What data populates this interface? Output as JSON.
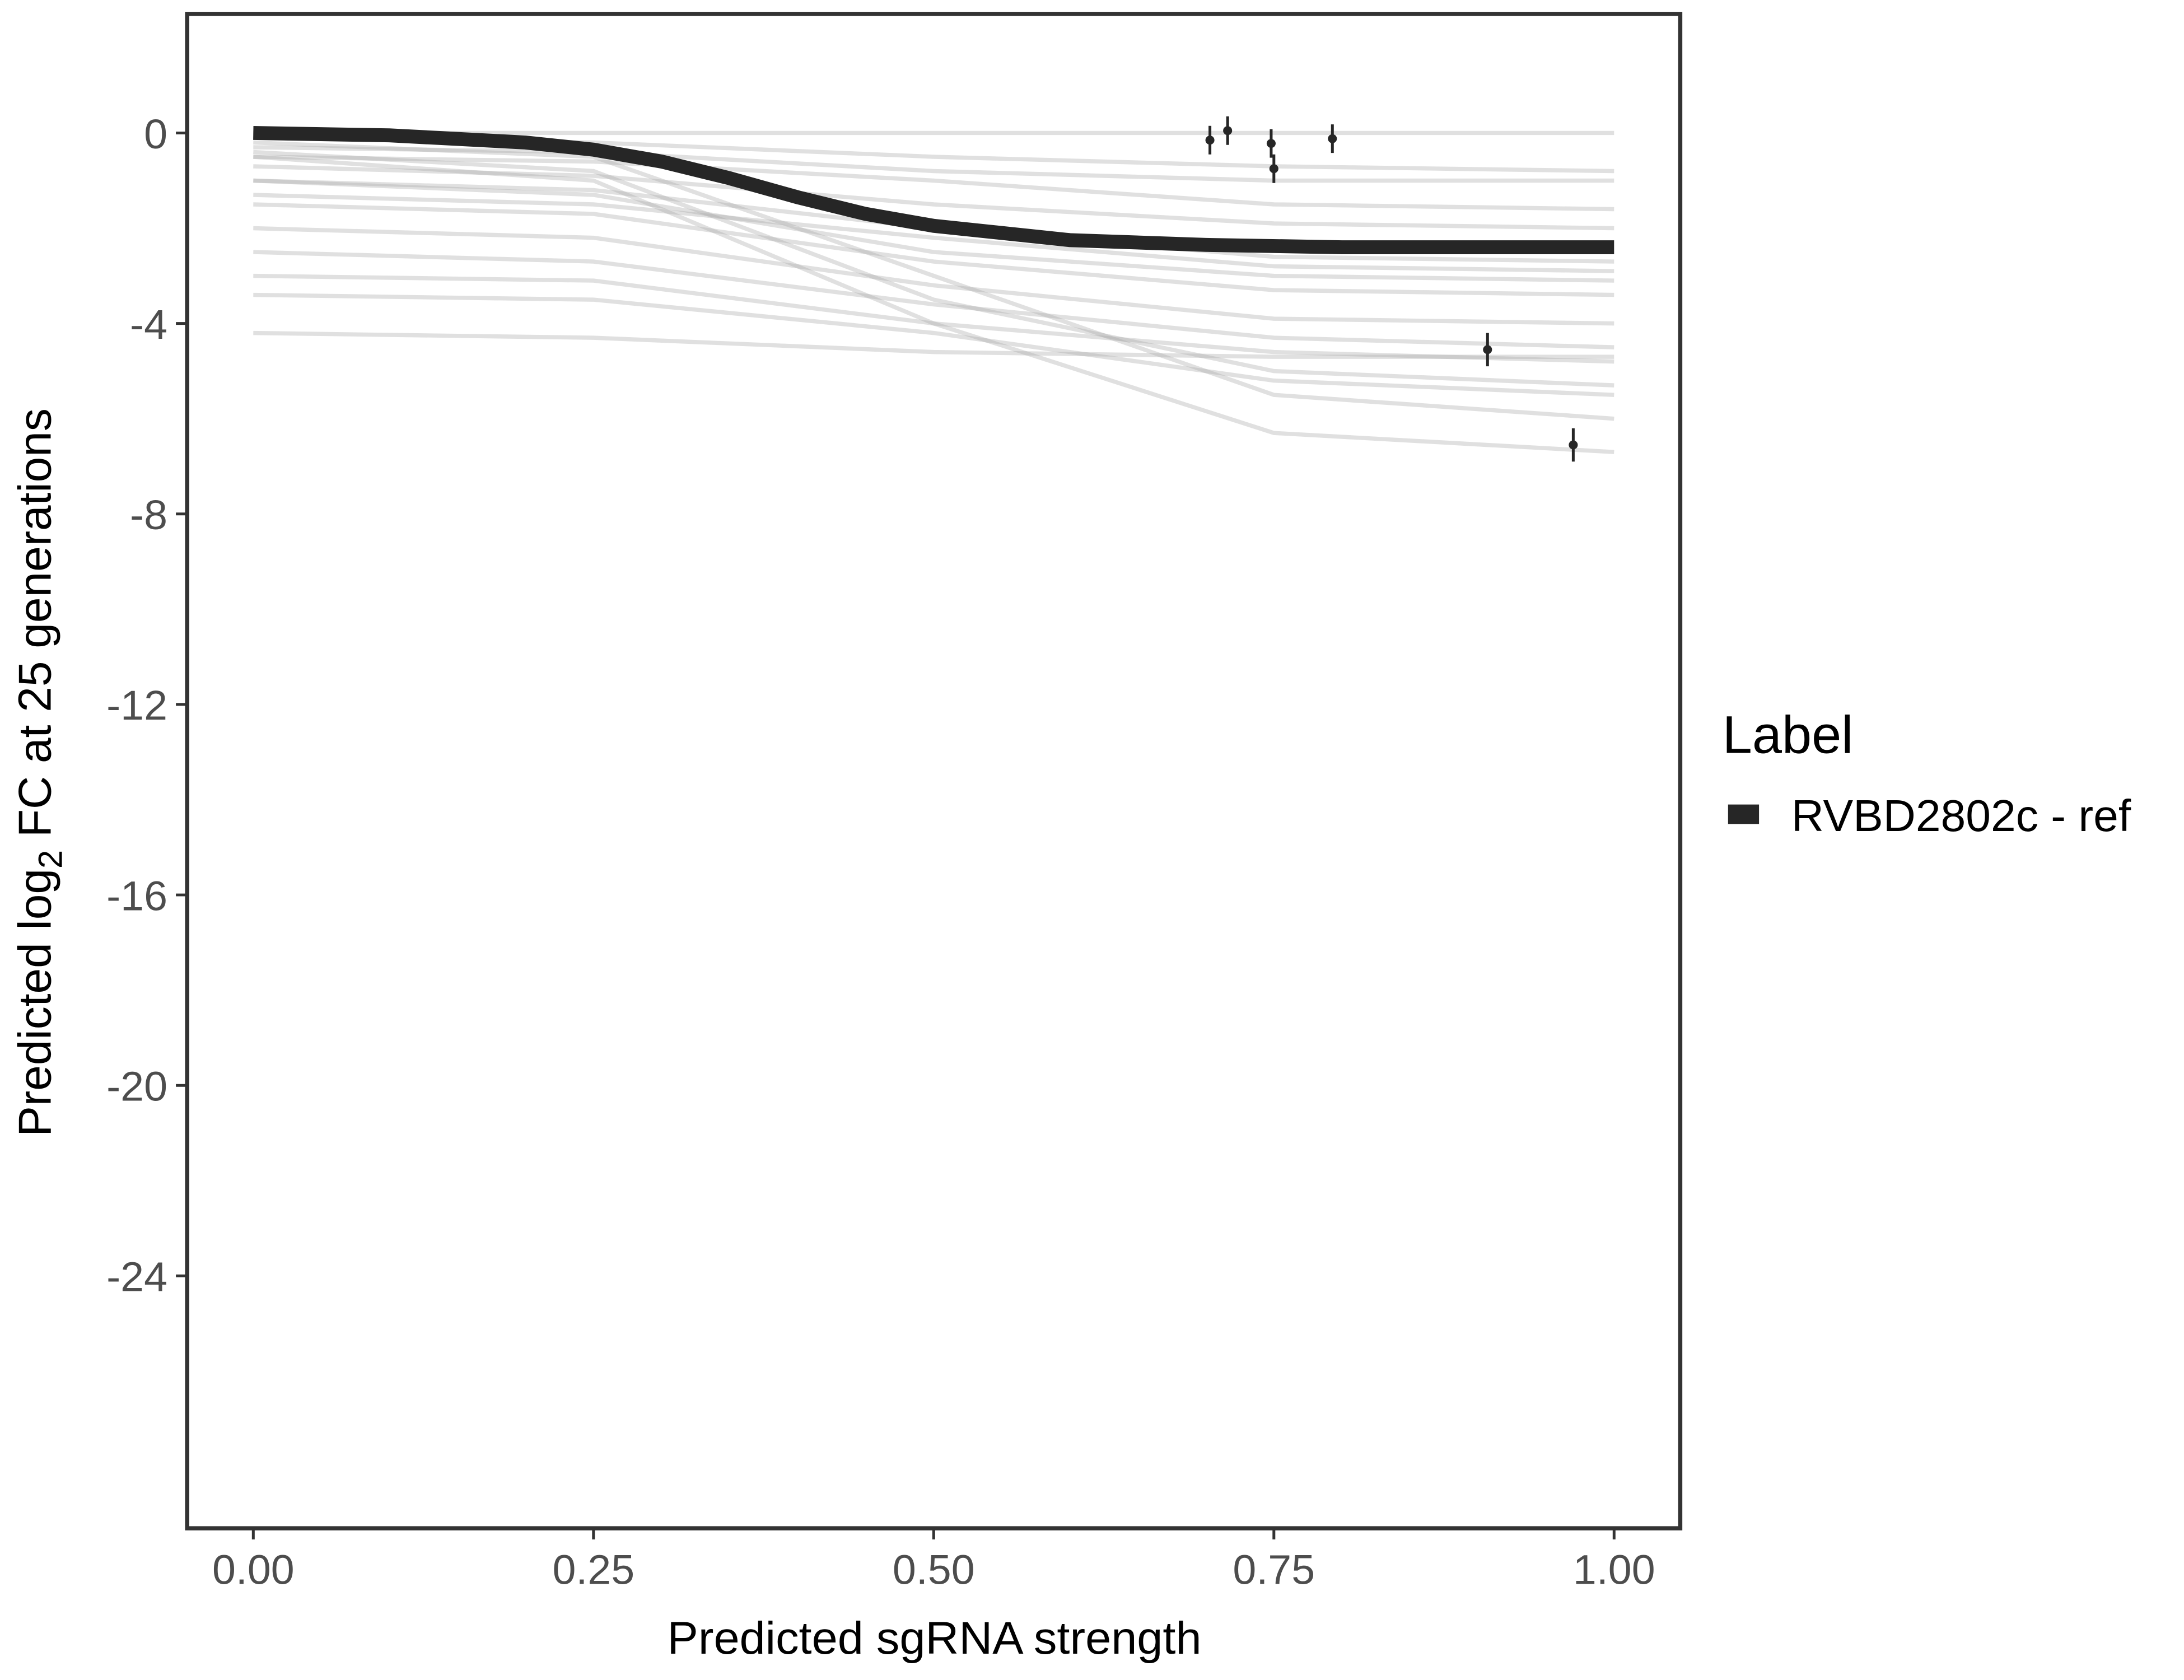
{
  "chart_data": {
    "type": "line",
    "xlabel": "Predicted sgRNA strength",
    "ylabel_parts": [
      "Predicted  log",
      "2",
      " FC at 25 generations"
    ],
    "xlim": [
      -0.0486,
      1.0486
    ],
    "ylim": [
      -29.3,
      2.5
    ],
    "xticks": [
      {
        "value": 0,
        "label": "0.00"
      },
      {
        "value": 0.25,
        "label": "0.25"
      },
      {
        "value": 0.5,
        "label": "0.50"
      },
      {
        "value": 0.75,
        "label": "0.75"
      },
      {
        "value": 1,
        "label": "1.00"
      }
    ],
    "yticks": [
      0,
      -4,
      -8,
      -12,
      -16,
      -20,
      -24
    ],
    "legend_title": "Label",
    "series": [
      {
        "name": "RVBD2802c - ref",
        "color": "#262626",
        "x": [
          0,
          0.1,
          0.2,
          0.25,
          0.3,
          0.35,
          0.4,
          0.45,
          0.5,
          0.6,
          0.7,
          0.8,
          0.9,
          1.0
        ],
        "values": [
          0,
          -0.05,
          -0.2,
          -0.35,
          -0.6,
          -0.95,
          -1.35,
          -1.7,
          -1.95,
          -2.25,
          -2.35,
          -2.4,
          -2.4,
          -2.4
        ]
      }
    ],
    "draw_color": "#a6a6a6",
    "draw_x": [
      0,
      0.25,
      0.5,
      0.75,
      1.0
    ],
    "draws": [
      [
        0,
        0,
        0,
        0,
        0
      ],
      [
        -0.1,
        -0.2,
        -0.5,
        -0.7,
        -0.8
      ],
      [
        -0.3,
        -0.4,
        -0.8,
        -1,
        -1
      ],
      [
        -0.5,
        -0.6,
        -1.0,
        -1.5,
        -1.6
      ],
      [
        -0.7,
        -0.9,
        -1.5,
        -1.9,
        -2.0
      ],
      [
        -1,
        -1.2,
        -2,
        -2.6,
        -2.7
      ],
      [
        -1,
        -1.3,
        -2.5,
        -3,
        -3.1
      ],
      [
        -1.3,
        -1.5,
        -2.2,
        -2.8,
        -2.9
      ],
      [
        -1.5,
        -1.7,
        -2.7,
        -3.3,
        -3.4
      ],
      [
        -2,
        -2.2,
        -3.2,
        -3.9,
        -4.0
      ],
      [
        -2.5,
        -2.7,
        -3.6,
        -4.3,
        -4.5
      ],
      [
        -3,
        -3.1,
        -4,
        -4.6,
        -4.8
      ],
      [
        -0.2,
        -0.5,
        -3,
        -5.5,
        -6.0
      ],
      [
        -0.5,
        -1.0,
        -4.0,
        -6.3,
        -6.7
      ],
      [
        -0.4,
        -0.8,
        -3.5,
        -5.0,
        -5.3
      ],
      [
        -4.2,
        -4.3,
        -4.6,
        -4.7,
        -4.7
      ],
      [
        -3.4,
        -3.5,
        -4.2,
        -5.2,
        -5.5
      ]
    ],
    "points": {
      "x": [
        0.703,
        0.716,
        0.748,
        0.75,
        0.793,
        0.907,
        0.97
      ],
      "y": [
        -0.15,
        0.05,
        -0.22,
        -0.75,
        -0.12,
        -4.55,
        -6.55
      ],
      "err": [
        0.3,
        0.3,
        0.3,
        0.3,
        0.3,
        0.35,
        0.35
      ]
    }
  }
}
